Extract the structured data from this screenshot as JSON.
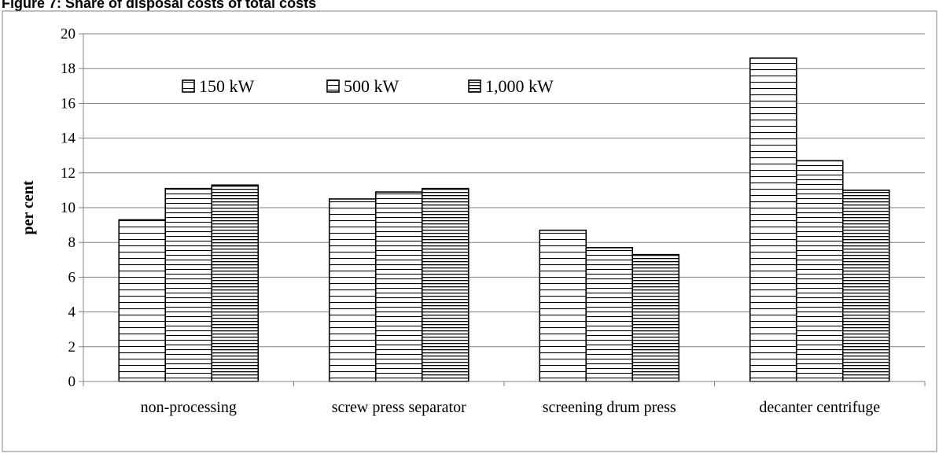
{
  "header": {
    "title": "Figure 7: Share of disposal costs of total costs"
  },
  "chart_data": {
    "type": "bar",
    "title": "Figure 7: Share of disposal costs of total costs",
    "xlabel": "",
    "ylabel": "per cent",
    "ylim": [
      0,
      20
    ],
    "yticks": [
      0,
      2,
      4,
      6,
      8,
      10,
      12,
      14,
      16,
      18,
      20
    ],
    "categories": [
      "non-processing",
      "screw press separator",
      "screening drum press",
      "decanter centrifuge"
    ],
    "series": [
      {
        "name": "150 kW",
        "pattern": "wide-horizontal-lines",
        "values": [
          9.3,
          10.5,
          8.7,
          18.6
        ]
      },
      {
        "name": "500 kW",
        "pattern": "medium-horizontal-lines",
        "values": [
          11.1,
          10.9,
          7.7,
          12.7
        ]
      },
      {
        "name": "1,000 kW",
        "pattern": "dense-horizontal-lines",
        "values": [
          11.3,
          11.1,
          7.3,
          11.0
        ]
      }
    ],
    "grid": true,
    "legend_position": "top-left inside plot",
    "colors": {
      "bar_line": "#000000",
      "bar_fill": "#ffffff",
      "grid": "#808080",
      "axis": "#808080"
    }
  }
}
